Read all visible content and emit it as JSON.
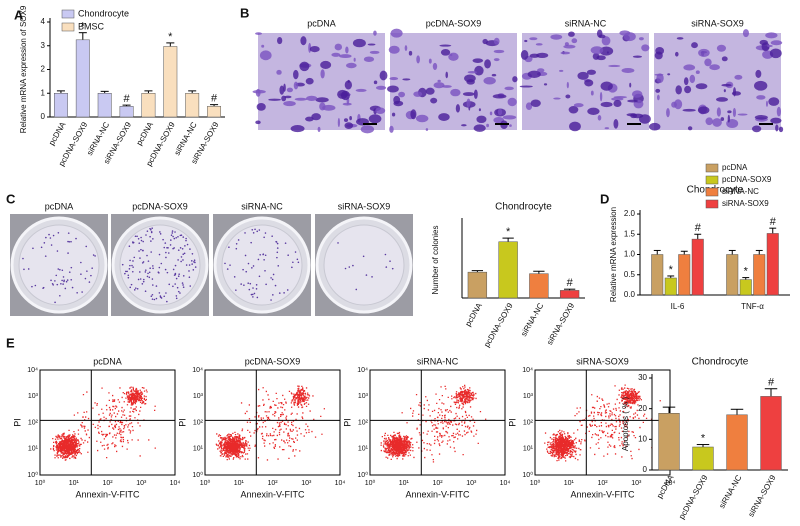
{
  "panel_b": {
    "label": "B",
    "titles": [
      "pcDNA",
      "pcDNA-SOX9",
      "siRNA-NC",
      "siRNA-SOX9"
    ]
  },
  "panel_c": {
    "label": "C",
    "titles": [
      "pcDNA",
      "pcDNA-SOX9",
      "siRNA-NC",
      "siRNA-SOX9"
    ]
  },
  "panel_e": {
    "label": "E",
    "titles": [
      "pcDNA",
      "pcDNA-SOX9",
      "siRNA-NC",
      "siRNA-SOX9"
    ],
    "xlabel": "Annexin-V-FITC",
    "ylabel": "PI",
    "ticks": [
      "10⁰",
      "10¹",
      "10²",
      "10³",
      "10⁴"
    ]
  },
  "chart_data": [
    {
      "type": "bar",
      "panel": "A",
      "ylabel": "Relative mRNA expression of SOX9",
      "categories": [
        "pcDNA",
        "pcDNA-SOX9",
        "siRNA-NC",
        "siRNA-SOX9",
        "pcDNA",
        "pcDNA-SOX9",
        "siRNA-NC",
        "siRNA-SOX9"
      ],
      "series": [
        {
          "name": "Chondrocyte",
          "color": "#c9c9f2",
          "values": [
            1.0,
            3.25,
            1.0,
            0.45,
            null,
            null,
            null,
            null
          ],
          "errors": [
            0.1,
            0.3,
            0.08,
            0.05,
            null,
            null,
            null,
            null
          ],
          "marks": [
            null,
            "*",
            null,
            "#",
            null,
            null,
            null,
            null
          ]
        },
        {
          "name": "BMSC",
          "color": "#f9dfbe",
          "values": [
            null,
            null,
            null,
            null,
            1.0,
            2.97,
            1.0,
            0.45
          ],
          "errors": [
            null,
            null,
            null,
            null,
            0.1,
            0.15,
            0.1,
            0.07
          ],
          "marks": [
            null,
            null,
            null,
            null,
            null,
            "*",
            null,
            "#"
          ]
        }
      ],
      "ylim": [
        0,
        4
      ],
      "yticks": [
        0,
        1,
        2,
        3,
        4
      ],
      "legend": "upper left"
    },
    {
      "type": "bar",
      "title": "Chondrocyte",
      "ylabel": "Number of colonies",
      "categories": [
        "pcDNA",
        "pcDNA-SOX9",
        "siRNA-NC",
        "siRNA-SOX9"
      ],
      "values": [
        85,
        185,
        80,
        25
      ],
      "errors": [
        5,
        12,
        8,
        4
      ],
      "marks": [
        null,
        "*",
        null,
        "#"
      ],
      "colors": [
        "#c9a062",
        "#c8c81e",
        "#ef7f3f",
        "#ee4040"
      ],
      "ylim": [
        0,
        250
      ]
    },
    {
      "type": "bar",
      "panel": "D",
      "title": "Chondrocyte",
      "ylabel": "Relative mRNA expression",
      "categories": [
        "IL-6",
        "TNF-α"
      ],
      "series": [
        {
          "name": "pcDNA",
          "color": "#c9a062",
          "values": [
            1.0,
            1.0
          ],
          "errors": [
            0.1,
            0.1
          ],
          "marks": [
            null,
            null
          ]
        },
        {
          "name": "pcDNA-SOX9",
          "color": "#c8c81e",
          "values": [
            0.42,
            0.38
          ],
          "errors": [
            0.05,
            0.05
          ],
          "marks": [
            "*",
            "*"
          ]
        },
        {
          "name": "siRNA-NC",
          "color": "#ef7f3f",
          "values": [
            1.0,
            1.0
          ],
          "errors": [
            0.08,
            0.1
          ],
          "marks": [
            null,
            null
          ]
        },
        {
          "name": "siRNA-SOX9",
          "color": "#ee4040",
          "values": [
            1.38,
            1.52
          ],
          "errors": [
            0.12,
            0.13
          ],
          "marks": [
            "#",
            "#"
          ]
        }
      ],
      "ylim": [
        0,
        2.0
      ],
      "yticks": [
        {
          "value": 0,
          "label": "0.0"
        },
        0.5,
        {
          "value": 1.0,
          "label": "1.0"
        },
        1.5,
        {
          "value": 2.0,
          "label": "2.0"
        }
      ],
      "legend": "upper right"
    },
    {
      "type": "bar",
      "title": "Chondrocyte",
      "ylabel": "Apoptosis ( % )",
      "categories": [
        "pcDNA",
        "pcDNA-SOX9",
        "siRNA-NC",
        "siRNA-SOX9"
      ],
      "values": [
        18.5,
        7.5,
        18,
        24
      ],
      "errors": [
        2,
        0.8,
        1.8,
        2.5
      ],
      "marks": [
        null,
        "*",
        null,
        "#"
      ],
      "colors": [
        "#c9a062",
        "#c8c81e",
        "#ef7f3f",
        "#ee4040"
      ],
      "ylim": [
        0,
        30
      ],
      "yticks": [
        0,
        10,
        20,
        30
      ]
    }
  ]
}
